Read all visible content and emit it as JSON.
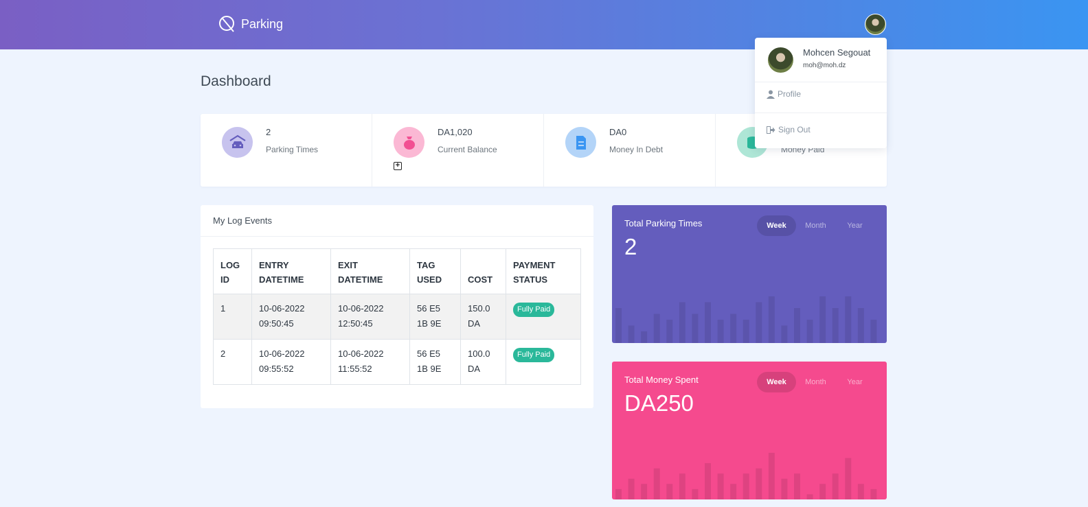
{
  "header": {
    "brand": "Parking"
  },
  "page": {
    "title": "Dashboard"
  },
  "stats": [
    {
      "value": "2",
      "label": "Parking Times",
      "icon": "car-garage-icon",
      "color": "#8c86d8"
    },
    {
      "value": "DA1,020",
      "label": "Current Balance",
      "icon": "money-bag-icon",
      "color": "#f24f92"
    },
    {
      "value": "DA0",
      "label": "Money In Debt",
      "icon": "document-icon",
      "color": "#3a95f2"
    },
    {
      "value": "",
      "label": "Money Paid",
      "icon": "coins-icon",
      "color": "#2ab89a"
    }
  ],
  "log": {
    "title": "My Log Events",
    "columns": [
      "LOG ID",
      "ENTRY DATETIME",
      "EXIT DATETIME",
      "TAG USED",
      "COST",
      "PAYMENT STATUS"
    ],
    "rows": [
      {
        "id": "1",
        "entry": "10-06-2022 09:50:45",
        "exit": "10-06-2022 12:50:45",
        "tag": "56 E5 1B 9E",
        "cost": "150.0 DA",
        "status": "Fully Paid"
      },
      {
        "id": "2",
        "entry": "10-06-2022 09:55:52",
        "exit": "10-06-2022 11:55:52",
        "tag": "56 E5 1B 9E",
        "cost": "100.0 DA",
        "status": "Fully Paid"
      }
    ]
  },
  "parking_chart": {
    "title": "Total Parking Times",
    "value": "2",
    "tabs": [
      "Week",
      "Month",
      "Year"
    ],
    "active_tab": "Week",
    "color": "#645dbd",
    "bars": [
      6,
      3,
      2,
      5,
      4,
      7,
      5,
      7,
      4,
      5,
      4,
      7,
      8,
      3,
      6,
      4,
      8,
      6,
      8,
      6,
      4
    ]
  },
  "money_chart": {
    "title": "Total Money Spent",
    "value": "DA250",
    "tabs": [
      "Week",
      "Month",
      "Year"
    ],
    "active_tab": "Week",
    "color": "#f54a8e",
    "bars": [
      2,
      4,
      3,
      6,
      3,
      5,
      2,
      7,
      5,
      3,
      5,
      6,
      9,
      4,
      5,
      1,
      3,
      5,
      8,
      3,
      2
    ]
  },
  "user_menu": {
    "name": "Mohcen Segouat",
    "email": "moh@moh.dz",
    "profile_label": "Profile",
    "signout_label": "Sign Out"
  }
}
